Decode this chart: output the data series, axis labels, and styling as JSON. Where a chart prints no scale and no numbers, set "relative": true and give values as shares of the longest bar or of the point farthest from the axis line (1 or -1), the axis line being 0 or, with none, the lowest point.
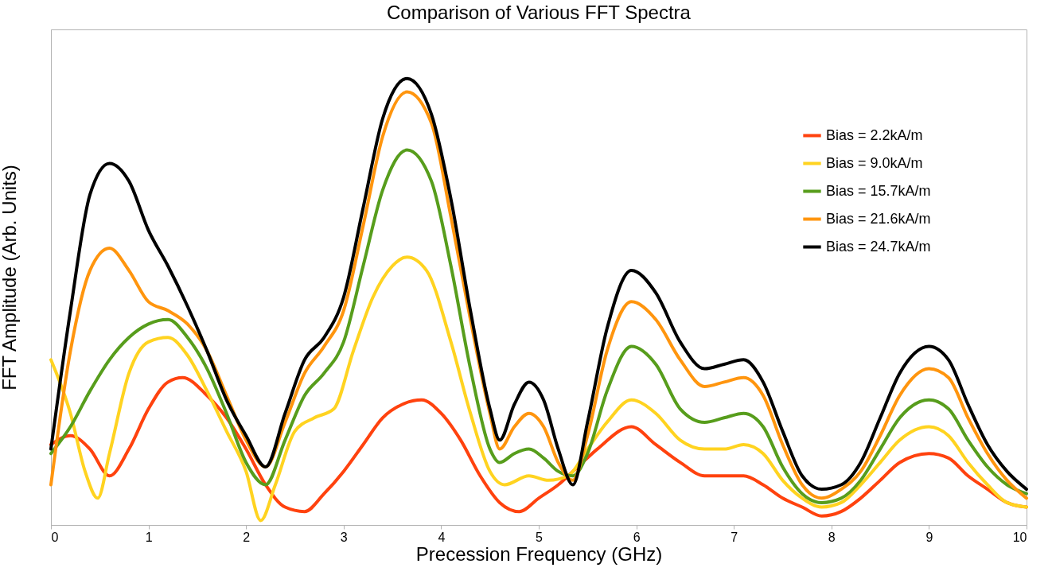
{
  "chart_data": {
    "type": "line",
    "title": "Comparison of Various FFT Spectra",
    "xlabel": "Precession Frequency (GHz)",
    "ylabel": "FFT Amplitude (Arb. Units)",
    "relative": true,
    "xlim": [
      0,
      10
    ],
    "xticks": [
      0,
      1,
      2,
      3,
      4,
      5,
      6,
      7,
      8,
      9,
      10
    ],
    "grid": false,
    "legend": "top right",
    "line_style": "solid",
    "marker": "none",
    "series": [
      {
        "name": "Bias = 2.2kA/m",
        "color": "#ff420e",
        "x": [
          0,
          0.2,
          0.4,
          0.6,
          0.8,
          1.0,
          1.2,
          1.35,
          1.6,
          1.8,
          2.0,
          2.2,
          2.4,
          2.6,
          2.8,
          3.0,
          3.2,
          3.4,
          3.6,
          3.8,
          4.0,
          4.2,
          4.4,
          4.6,
          4.8,
          5.0,
          5.2,
          5.4,
          5.6,
          5.95,
          6.2,
          6.45,
          6.7,
          6.9,
          7.1,
          7.3,
          7.5,
          7.7,
          7.9,
          8.1,
          8.3,
          8.5,
          8.7,
          9.0,
          9.2,
          9.4,
          9.6,
          9.8,
          10
        ],
        "values": [
          0.18,
          0.2,
          0.17,
          0.11,
          0.17,
          0.26,
          0.32,
          0.33,
          0.29,
          0.24,
          0.17,
          0.09,
          0.04,
          0.03,
          0.07,
          0.12,
          0.18,
          0.24,
          0.27,
          0.28,
          0.25,
          0.19,
          0.11,
          0.05,
          0.03,
          0.06,
          0.09,
          0.13,
          0.17,
          0.22,
          0.18,
          0.14,
          0.11,
          0.11,
          0.11,
          0.09,
          0.06,
          0.04,
          0.02,
          0.03,
          0.06,
          0.1,
          0.14,
          0.16,
          0.15,
          0.11,
          0.08,
          0.05,
          0.04
        ]
      },
      {
        "name": "Bias = 9.0kA/m",
        "color": "#ffd320",
        "x": [
          0,
          0.2,
          0.35,
          0.48,
          0.6,
          0.8,
          1.0,
          1.2,
          1.4,
          1.6,
          1.8,
          2.0,
          2.15,
          2.3,
          2.5,
          2.7,
          2.9,
          3.1,
          3.3,
          3.5,
          3.65,
          3.85,
          4.1,
          4.3,
          4.5,
          4.65,
          4.9,
          5.1,
          5.3,
          5.5,
          5.7,
          5.95,
          6.2,
          6.45,
          6.7,
          6.9,
          7.1,
          7.3,
          7.5,
          7.7,
          7.9,
          8.1,
          8.3,
          8.5,
          8.7,
          9.0,
          9.2,
          9.4,
          9.6,
          9.8,
          10
        ],
        "values": [
          0.37,
          0.25,
          0.12,
          0.06,
          0.16,
          0.34,
          0.41,
          0.42,
          0.38,
          0.3,
          0.21,
          0.12,
          0.01,
          0.09,
          0.21,
          0.24,
          0.26,
          0.39,
          0.51,
          0.58,
          0.6,
          0.57,
          0.41,
          0.25,
          0.12,
          0.09,
          0.11,
          0.1,
          0.11,
          0.17,
          0.23,
          0.28,
          0.25,
          0.19,
          0.17,
          0.17,
          0.18,
          0.16,
          0.1,
          0.06,
          0.04,
          0.05,
          0.09,
          0.14,
          0.19,
          0.22,
          0.2,
          0.14,
          0.09,
          0.05,
          0.04
        ]
      },
      {
        "name": "Bias = 15.7kA/m",
        "color": "#579d1c",
        "x": [
          0,
          0.2,
          0.4,
          0.6,
          0.8,
          1.0,
          1.2,
          1.4,
          1.6,
          1.8,
          2.0,
          2.2,
          2.4,
          2.6,
          2.8,
          3.0,
          3.2,
          3.4,
          3.65,
          3.9,
          4.1,
          4.3,
          4.5,
          4.6,
          4.75,
          4.9,
          5.05,
          5.2,
          5.35,
          5.5,
          5.7,
          5.95,
          6.2,
          6.45,
          6.7,
          6.9,
          7.1,
          7.3,
          7.5,
          7.7,
          7.9,
          8.1,
          8.3,
          8.5,
          8.7,
          9.0,
          9.2,
          9.4,
          9.6,
          9.8,
          10
        ],
        "values": [
          0.16,
          0.22,
          0.3,
          0.37,
          0.42,
          0.45,
          0.46,
          0.42,
          0.35,
          0.25,
          0.14,
          0.09,
          0.19,
          0.29,
          0.34,
          0.41,
          0.58,
          0.75,
          0.84,
          0.77,
          0.58,
          0.35,
          0.17,
          0.14,
          0.16,
          0.17,
          0.15,
          0.12,
          0.11,
          0.16,
          0.3,
          0.4,
          0.36,
          0.26,
          0.23,
          0.24,
          0.25,
          0.22,
          0.13,
          0.07,
          0.05,
          0.06,
          0.1,
          0.17,
          0.24,
          0.28,
          0.26,
          0.19,
          0.13,
          0.09,
          0.07
        ]
      },
      {
        "name": "Bias = 21.6kA/m",
        "color": "#ff950e",
        "x": [
          0,
          0.2,
          0.4,
          0.6,
          0.8,
          1.0,
          1.2,
          1.4,
          1.6,
          1.8,
          2.0,
          2.2,
          2.4,
          2.6,
          2.8,
          3.0,
          3.2,
          3.4,
          3.65,
          3.9,
          4.1,
          4.3,
          4.5,
          4.6,
          4.75,
          4.9,
          5.05,
          5.2,
          5.35,
          5.5,
          5.7,
          5.95,
          6.2,
          6.45,
          6.7,
          6.9,
          7.1,
          7.3,
          7.5,
          7.7,
          7.9,
          8.1,
          8.3,
          8.5,
          8.7,
          9.0,
          9.2,
          9.4,
          9.6,
          9.8,
          10
        ],
        "values": [
          0.09,
          0.39,
          0.57,
          0.62,
          0.57,
          0.5,
          0.48,
          0.45,
          0.39,
          0.29,
          0.19,
          0.13,
          0.23,
          0.34,
          0.4,
          0.48,
          0.67,
          0.87,
          0.97,
          0.9,
          0.69,
          0.46,
          0.25,
          0.17,
          0.22,
          0.25,
          0.22,
          0.14,
          0.1,
          0.2,
          0.39,
          0.5,
          0.46,
          0.37,
          0.31,
          0.32,
          0.33,
          0.29,
          0.18,
          0.09,
          0.06,
          0.08,
          0.12,
          0.2,
          0.29,
          0.35,
          0.33,
          0.24,
          0.16,
          0.1,
          0.06
        ]
      },
      {
        "name": "Bias = 24.7kA/m",
        "color": "#000000",
        "x": [
          0,
          0.2,
          0.4,
          0.6,
          0.8,
          1.0,
          1.2,
          1.4,
          1.6,
          1.8,
          2.0,
          2.2,
          2.4,
          2.6,
          2.8,
          3.0,
          3.2,
          3.4,
          3.65,
          3.9,
          4.1,
          4.3,
          4.5,
          4.6,
          4.75,
          4.9,
          5.05,
          5.2,
          5.35,
          5.5,
          5.7,
          5.95,
          6.2,
          6.45,
          6.7,
          6.9,
          7.1,
          7.3,
          7.5,
          7.7,
          7.9,
          8.1,
          8.3,
          8.5,
          8.7,
          9.0,
          9.2,
          9.4,
          9.6,
          9.8,
          10
        ],
        "values": [
          0.17,
          0.48,
          0.74,
          0.81,
          0.77,
          0.66,
          0.58,
          0.49,
          0.39,
          0.28,
          0.2,
          0.13,
          0.25,
          0.37,
          0.42,
          0.51,
          0.71,
          0.91,
          1.0,
          0.92,
          0.73,
          0.48,
          0.26,
          0.19,
          0.27,
          0.32,
          0.28,
          0.17,
          0.09,
          0.23,
          0.44,
          0.57,
          0.52,
          0.41,
          0.35,
          0.36,
          0.37,
          0.32,
          0.21,
          0.11,
          0.08,
          0.09,
          0.14,
          0.24,
          0.34,
          0.4,
          0.37,
          0.27,
          0.18,
          0.12,
          0.08
        ]
      }
    ]
  }
}
